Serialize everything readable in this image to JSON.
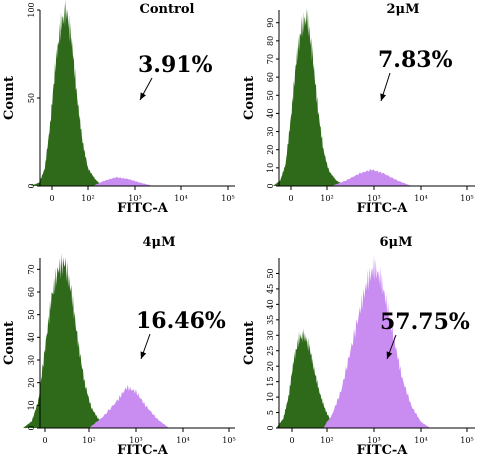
{
  "colors": {
    "green": "#2f6a1a",
    "violet": "#c98cf0",
    "axis": "#000000"
  },
  "chart_data": [
    {
      "type": "area",
      "title": "Control",
      "annotation": "3.91%",
      "xlabel": "FITC-A",
      "ylabel": "Count",
      "xticks": [
        "0",
        "10²",
        "10³",
        "10⁴",
        "10⁵"
      ],
      "yticks": [
        0,
        50,
        100
      ],
      "ylim": [
        0,
        100
      ],
      "series": [
        {
          "color": "green",
          "x": [
            -0.6,
            -0.35,
            -0.2,
            -0.05,
            0.1,
            0.25,
            0.4,
            0.55,
            0.7,
            0.85,
            1.0,
            1.15,
            1.3
          ],
          "y": [
            0,
            2,
            10,
            35,
            70,
            92,
            100,
            82,
            50,
            25,
            10,
            4,
            0
          ]
        },
        {
          "color": "violet",
          "x": [
            1.1,
            1.35,
            1.6,
            1.85,
            2.1,
            2.4
          ],
          "y": [
            0,
            3,
            5,
            4,
            2,
            0
          ]
        }
      ]
    },
    {
      "type": "area",
      "title": "2μM",
      "annotation": "7.83%",
      "xlabel": "FITC-A",
      "ylabel": "Count",
      "xticks": [
        "0",
        "10²",
        "10³",
        "10⁴",
        "10⁵"
      ],
      "yticks": [
        0,
        10,
        20,
        30,
        40,
        50,
        60,
        70,
        80,
        90
      ],
      "ylim": [
        0,
        97
      ],
      "series": [
        {
          "color": "green",
          "x": [
            -0.5,
            -0.3,
            -0.15,
            0.0,
            0.15,
            0.3,
            0.45,
            0.6,
            0.75,
            0.9,
            1.05,
            1.2,
            1.4
          ],
          "y": [
            0,
            3,
            12,
            38,
            70,
            88,
            93,
            72,
            42,
            20,
            8,
            3,
            0
          ]
        },
        {
          "color": "violet",
          "x": [
            1.1,
            1.4,
            1.7,
            1.95,
            2.2,
            2.5,
            2.8
          ],
          "y": [
            0,
            3,
            7,
            9,
            7,
            3,
            0
          ]
        }
      ]
    },
    {
      "type": "area",
      "title": "4μM",
      "annotation": "16.46%",
      "xlabel": "FITC-A",
      "ylabel": "Count",
      "xticks": [
        "0",
        "10²",
        "10³",
        "10⁴",
        "10⁵"
      ],
      "yticks": [
        0,
        10,
        20,
        30,
        40,
        50,
        60,
        70
      ],
      "ylim": [
        0,
        75
      ],
      "series": [
        {
          "color": "green",
          "x": [
            -0.5,
            -0.3,
            -0.15,
            0.0,
            0.15,
            0.3,
            0.45,
            0.6,
            0.75,
            0.9,
            1.05,
            1.2,
            1.4
          ],
          "y": [
            0,
            3,
            12,
            35,
            58,
            70,
            73,
            60,
            38,
            20,
            9,
            4,
            0
          ]
        },
        {
          "color": "violet",
          "x": [
            1.0,
            1.3,
            1.6,
            1.8,
            2.0,
            2.2,
            2.45,
            2.7
          ],
          "y": [
            0,
            5,
            12,
            18,
            16,
            10,
            4,
            0
          ]
        }
      ]
    },
    {
      "type": "area",
      "title": "6μM",
      "annotation": "57.75%",
      "xlabel": "FITC-A",
      "ylabel": "Count",
      "xticks": [
        "0",
        "10²",
        "10³",
        "10⁴",
        "10⁵"
      ],
      "yticks": [
        0,
        5,
        10,
        15,
        20,
        25,
        30,
        35,
        40,
        45,
        50
      ],
      "ylim": [
        0,
        55
      ],
      "series": [
        {
          "color": "green",
          "x": [
            -0.45,
            -0.25,
            -0.1,
            0.05,
            0.2,
            0.35,
            0.5,
            0.65,
            0.8,
            0.95,
            1.1,
            1.3
          ],
          "y": [
            0,
            3,
            10,
            22,
            29,
            30,
            26,
            18,
            11,
            6,
            2,
            0
          ]
        },
        {
          "color": "violet",
          "x": [
            0.9,
            1.1,
            1.3,
            1.5,
            1.7,
            1.85,
            2.0,
            2.15,
            2.3,
            2.45,
            2.6,
            2.8,
            3.0,
            3.2
          ],
          "y": [
            0,
            4,
            12,
            25,
            38,
            47,
            52,
            48,
            38,
            27,
            16,
            7,
            2,
            0
          ]
        }
      ]
    }
  ]
}
